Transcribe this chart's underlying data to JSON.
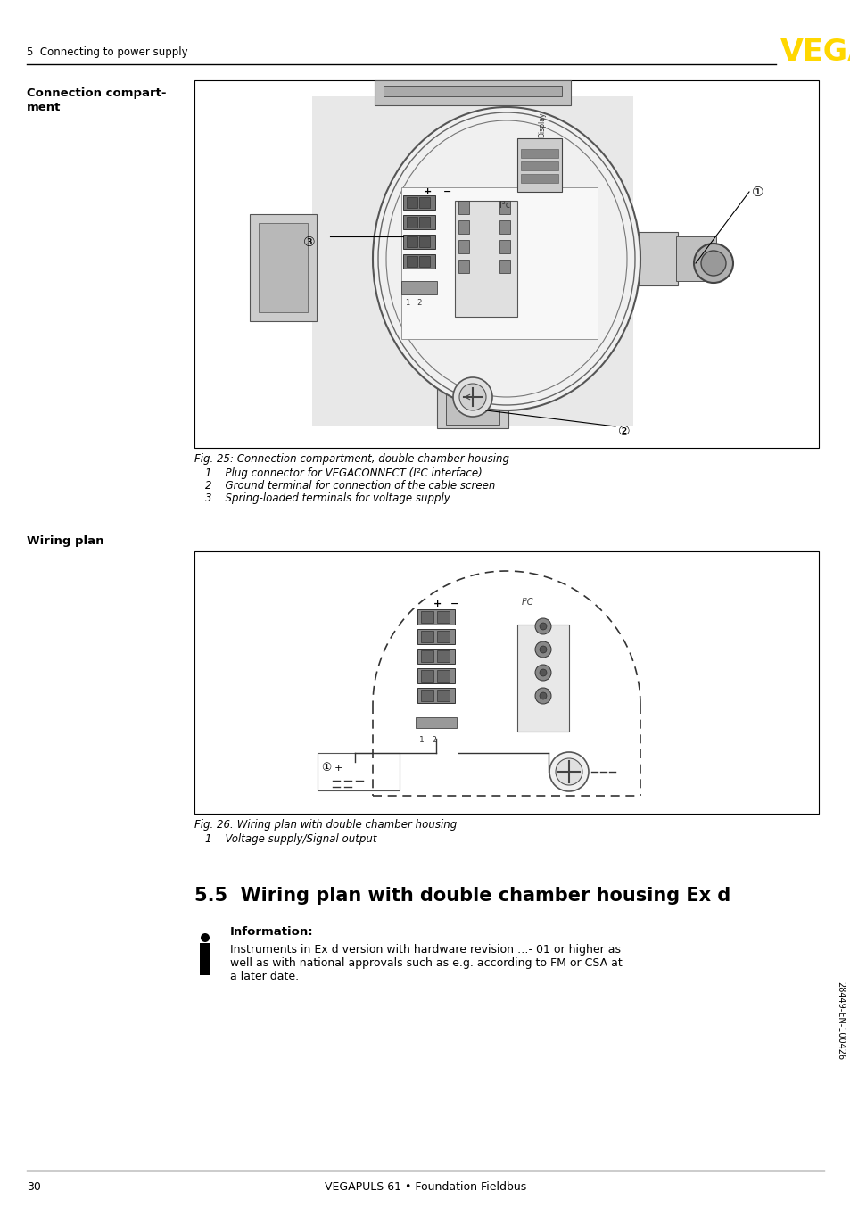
{
  "page_number": "30",
  "footer_text": "VEGAPULS 61 • Foundation Fieldbus",
  "header_section": "5  Connecting to power supply",
  "vega_logo_color": "#FFD700",
  "side_label": "28449-EN-100426",
  "section_label_1_line1": "Connection compart-",
  "section_label_1_line2": "ment",
  "section_label_2": "Wiring plan",
  "fig25_caption": "Fig. 25: Connection compartment, double chamber housing",
  "fig25_items": [
    "1    Plug connector for VEGACONNECT (I²C interface)",
    "2    Ground terminal for connection of the cable screen",
    "3    Spring-loaded terminals for voltage supply"
  ],
  "fig26_caption": "Fig. 26: Wiring plan with double chamber housing",
  "fig26_items": [
    "1    Voltage supply/Signal output"
  ],
  "section_55_title": "5.5  Wiring plan with double chamber housing Ex d",
  "info_title": "Information:",
  "info_line1": "Instruments in Ex d version with hardware revision …- 01 or higher as",
  "info_line2": "well as with national approvals such as e.g. according to FM or CSA at",
  "info_line3": "a later date.",
  "bg_color": "#ffffff",
  "text_color": "#000000"
}
